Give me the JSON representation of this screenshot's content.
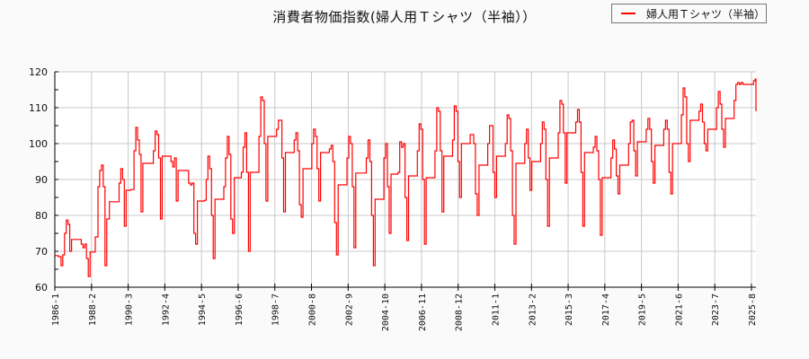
{
  "chart_data": {
    "type": "line",
    "title": "消費者物価指数(婦人用Ｔシャツ（半袖））",
    "xlabel": "",
    "ylabel": "",
    "ylim": [
      60,
      120
    ],
    "yticks": [
      60,
      70,
      80,
      90,
      100,
      110,
      120
    ],
    "xticks": [
      "1986-1",
      "1988-2",
      "1990-3",
      "1992-4",
      "1994-5",
      "1996-6",
      "1998-7",
      "2000-8",
      "2002-9",
      "2004-10",
      "2006-11",
      "2008-12",
      "2011-1",
      "2013-2",
      "2015-3",
      "2017-4",
      "2019-5",
      "2021-6",
      "2023-7",
      "2025-8"
    ],
    "grid": true,
    "legend_position": "top-right",
    "series": [
      {
        "name": "婦人用Ｔシャツ（半袖）",
        "color": "#ff0000",
        "points": [
          [
            1986.0,
            68.8
          ],
          [
            1986.2,
            68.5
          ],
          [
            1986.35,
            66
          ],
          [
            1986.45,
            69
          ],
          [
            1986.55,
            75
          ],
          [
            1986.65,
            78.7
          ],
          [
            1986.75,
            77.5
          ],
          [
            1986.85,
            70
          ],
          [
            1986.95,
            73.3
          ],
          [
            1987.2,
            73.3
          ],
          [
            1987.4,
            73.3
          ],
          [
            1987.5,
            72
          ],
          [
            1987.6,
            71
          ],
          [
            1987.7,
            72
          ],
          [
            1987.8,
            68
          ],
          [
            1987.9,
            63
          ],
          [
            1988.0,
            69.8
          ],
          [
            1988.1,
            69.8
          ],
          [
            1988.2,
            69.8
          ],
          [
            1988.3,
            74
          ],
          [
            1988.45,
            88
          ],
          [
            1988.55,
            92.5
          ],
          [
            1988.65,
            94
          ],
          [
            1988.75,
            88
          ],
          [
            1988.85,
            66
          ],
          [
            1988.95,
            79
          ],
          [
            1989.1,
            83.8
          ],
          [
            1989.5,
            83.8
          ],
          [
            1989.65,
            89
          ],
          [
            1989.75,
            93
          ],
          [
            1989.85,
            90
          ],
          [
            1989.95,
            77
          ],
          [
            1990.05,
            87
          ],
          [
            1990.3,
            87.2
          ],
          [
            1990.4,
            87.2
          ],
          [
            1990.5,
            98
          ],
          [
            1990.6,
            104.5
          ],
          [
            1990.7,
            101
          ],
          [
            1990.8,
            97
          ],
          [
            1990.9,
            81
          ],
          [
            1991.0,
            94.5
          ],
          [
            1991.3,
            94.5
          ],
          [
            1991.5,
            94.5
          ],
          [
            1991.6,
            98
          ],
          [
            1991.7,
            103.5
          ],
          [
            1991.8,
            102.5
          ],
          [
            1991.9,
            96
          ],
          [
            1992.0,
            79
          ],
          [
            1992.1,
            96.5
          ],
          [
            1992.4,
            96.5
          ],
          [
            1992.5,
            96.5
          ],
          [
            1992.6,
            95
          ],
          [
            1992.7,
            93.5
          ],
          [
            1992.8,
            96
          ],
          [
            1992.9,
            84
          ],
          [
            1993.0,
            92.5
          ],
          [
            1993.3,
            92.5
          ],
          [
            1993.5,
            92.5
          ],
          [
            1993.6,
            89
          ],
          [
            1993.7,
            88.5
          ],
          [
            1993.8,
            89
          ],
          [
            1993.9,
            75
          ],
          [
            1994.0,
            72
          ],
          [
            1994.1,
            84
          ],
          [
            1994.4,
            84
          ],
          [
            1994.5,
            84.2
          ],
          [
            1994.6,
            90
          ],
          [
            1994.7,
            96.5
          ],
          [
            1994.8,
            93
          ],
          [
            1994.9,
            80
          ],
          [
            1995.0,
            68
          ],
          [
            1995.1,
            84.5
          ],
          [
            1995.5,
            84.5
          ],
          [
            1995.6,
            88
          ],
          [
            1995.7,
            96
          ],
          [
            1995.8,
            102
          ],
          [
            1995.9,
            97
          ],
          [
            1996.0,
            79
          ],
          [
            1996.1,
            75
          ],
          [
            1996.2,
            90.5
          ],
          [
            1996.5,
            90.5
          ],
          [
            1996.6,
            92
          ],
          [
            1996.7,
            99
          ],
          [
            1996.8,
            103
          ],
          [
            1996.9,
            92
          ],
          [
            1997.0,
            70
          ],
          [
            1997.1,
            92
          ],
          [
            1997.5,
            92
          ],
          [
            1997.6,
            102
          ],
          [
            1997.7,
            113
          ],
          [
            1997.8,
            112
          ],
          [
            1997.9,
            100
          ],
          [
            1998.0,
            84
          ],
          [
            1998.1,
            102
          ],
          [
            1998.5,
            102
          ],
          [
            1998.6,
            104
          ],
          [
            1998.7,
            106.5
          ],
          [
            1998.8,
            106.5
          ],
          [
            1998.9,
            96
          ],
          [
            1999.0,
            81
          ],
          [
            1999.1,
            97.5
          ],
          [
            1999.5,
            97.5
          ],
          [
            1999.6,
            101
          ],
          [
            1999.7,
            103
          ],
          [
            1999.8,
            98
          ],
          [
            1999.9,
            83
          ],
          [
            2000.0,
            79.5
          ],
          [
            2000.1,
            93
          ],
          [
            2000.5,
            93
          ],
          [
            2000.6,
            100
          ],
          [
            2000.7,
            104
          ],
          [
            2000.8,
            102
          ],
          [
            2000.9,
            93
          ],
          [
            2001.0,
            84
          ],
          [
            2001.1,
            97.5
          ],
          [
            2001.5,
            97.5
          ],
          [
            2001.6,
            98.5
          ],
          [
            2001.7,
            99.5
          ],
          [
            2001.8,
            95
          ],
          [
            2001.9,
            78
          ],
          [
            2002.0,
            69
          ],
          [
            2002.1,
            88.5
          ],
          [
            2002.5,
            88.5
          ],
          [
            2002.6,
            96
          ],
          [
            2002.7,
            102
          ],
          [
            2002.8,
            100
          ],
          [
            2002.9,
            88
          ],
          [
            2003.0,
            71
          ],
          [
            2003.1,
            91.8
          ],
          [
            2003.6,
            91.8
          ],
          [
            2003.7,
            96
          ],
          [
            2003.8,
            101
          ],
          [
            2003.9,
            95
          ],
          [
            2004.0,
            80
          ],
          [
            2004.1,
            66
          ],
          [
            2004.2,
            84.5
          ],
          [
            2004.6,
            84.5
          ],
          [
            2004.7,
            96
          ],
          [
            2004.8,
            100
          ],
          [
            2004.9,
            88
          ],
          [
            2005.0,
            75
          ],
          [
            2005.1,
            91.5
          ],
          [
            2005.4,
            91.5
          ],
          [
            2005.5,
            92
          ],
          [
            2005.6,
            100.5
          ],
          [
            2005.7,
            99
          ],
          [
            2005.8,
            100
          ],
          [
            2005.9,
            85
          ],
          [
            2006.0,
            73
          ],
          [
            2006.1,
            91
          ],
          [
            2006.5,
            91
          ],
          [
            2006.6,
            98
          ],
          [
            2006.7,
            105.5
          ],
          [
            2006.8,
            104
          ],
          [
            2006.9,
            90
          ],
          [
            2007.0,
            72
          ],
          [
            2007.1,
            90.5
          ],
          [
            2007.5,
            90.5
          ],
          [
            2007.6,
            98
          ],
          [
            2007.7,
            110
          ],
          [
            2007.8,
            109
          ],
          [
            2007.9,
            98
          ],
          [
            2008.0,
            81
          ],
          [
            2008.1,
            96.5
          ],
          [
            2008.5,
            96.5
          ],
          [
            2008.6,
            101
          ],
          [
            2008.7,
            110.5
          ],
          [
            2008.8,
            109
          ],
          [
            2008.9,
            95
          ],
          [
            2009.0,
            85
          ],
          [
            2009.1,
            100
          ],
          [
            2009.5,
            100
          ],
          [
            2009.6,
            102.5
          ],
          [
            2009.7,
            102.5
          ],
          [
            2009.8,
            100
          ],
          [
            2009.9,
            86
          ],
          [
            2010.0,
            80
          ],
          [
            2010.1,
            94
          ],
          [
            2010.5,
            94
          ],
          [
            2010.6,
            100
          ],
          [
            2010.7,
            105
          ],
          [
            2010.8,
            105
          ],
          [
            2010.9,
            92
          ],
          [
            2011.0,
            85
          ],
          [
            2011.1,
            96.5
          ],
          [
            2011.5,
            96.5
          ],
          [
            2011.6,
            100
          ],
          [
            2011.7,
            108
          ],
          [
            2011.8,
            107
          ],
          [
            2011.9,
            98
          ],
          [
            2012.0,
            80
          ],
          [
            2012.1,
            72
          ],
          [
            2012.2,
            94.5
          ],
          [
            2012.6,
            94.5
          ],
          [
            2012.7,
            100
          ],
          [
            2012.8,
            104
          ],
          [
            2012.9,
            96
          ],
          [
            2013.0,
            87
          ],
          [
            2013.1,
            95
          ],
          [
            2013.5,
            95
          ],
          [
            2013.6,
            100
          ],
          [
            2013.7,
            106
          ],
          [
            2013.8,
            104
          ],
          [
            2013.9,
            90
          ],
          [
            2014.0,
            77
          ],
          [
            2014.1,
            96
          ],
          [
            2014.5,
            96
          ],
          [
            2014.6,
            103
          ],
          [
            2014.7,
            112
          ],
          [
            2014.8,
            111
          ],
          [
            2014.9,
            103
          ],
          [
            2015.0,
            89
          ],
          [
            2015.1,
            103
          ],
          [
            2015.5,
            103
          ],
          [
            2015.6,
            106
          ],
          [
            2015.7,
            109.5
          ],
          [
            2015.8,
            106
          ],
          [
            2015.9,
            92
          ],
          [
            2016.0,
            77
          ],
          [
            2016.1,
            97.5
          ],
          [
            2016.5,
            97.5
          ],
          [
            2016.6,
            99
          ],
          [
            2016.7,
            102
          ],
          [
            2016.8,
            98
          ],
          [
            2016.9,
            90
          ],
          [
            2017.0,
            74.5
          ],
          [
            2017.1,
            90.5
          ],
          [
            2017.5,
            90.5
          ],
          [
            2017.6,
            96
          ],
          [
            2017.7,
            101
          ],
          [
            2017.8,
            98.5
          ],
          [
            2017.9,
            91
          ],
          [
            2018.0,
            86
          ],
          [
            2018.1,
            94
          ],
          [
            2018.5,
            94
          ],
          [
            2018.6,
            100
          ],
          [
            2018.7,
            106
          ],
          [
            2018.8,
            106.5
          ],
          [
            2018.9,
            98
          ],
          [
            2019.0,
            91
          ],
          [
            2019.1,
            100.5
          ],
          [
            2019.5,
            100.5
          ],
          [
            2019.6,
            104
          ],
          [
            2019.7,
            107
          ],
          [
            2019.8,
            104
          ],
          [
            2019.9,
            95
          ],
          [
            2020.0,
            89
          ],
          [
            2020.1,
            99.5
          ],
          [
            2020.5,
            99.5
          ],
          [
            2020.6,
            104
          ],
          [
            2020.7,
            106.5
          ],
          [
            2020.8,
            104
          ],
          [
            2020.9,
            92
          ],
          [
            2021.0,
            86
          ],
          [
            2021.1,
            100
          ],
          [
            2021.5,
            100
          ],
          [
            2021.6,
            108
          ],
          [
            2021.7,
            115.5
          ],
          [
            2021.8,
            113
          ],
          [
            2021.9,
            100
          ],
          [
            2022.0,
            95
          ],
          [
            2022.1,
            106.5
          ],
          [
            2022.5,
            106.5
          ],
          [
            2022.6,
            109
          ],
          [
            2022.7,
            111
          ],
          [
            2022.8,
            106
          ],
          [
            2022.9,
            100
          ],
          [
            2023.0,
            98
          ],
          [
            2023.1,
            104
          ],
          [
            2023.5,
            104
          ],
          [
            2023.6,
            110
          ],
          [
            2023.7,
            114.5
          ],
          [
            2023.8,
            111
          ],
          [
            2023.9,
            104
          ],
          [
            2024.0,
            99
          ],
          [
            2024.1,
            107
          ],
          [
            2024.5,
            107
          ],
          [
            2024.6,
            112
          ],
          [
            2024.7,
            116.5
          ],
          [
            2024.8,
            117
          ],
          [
            2024.9,
            116.5
          ],
          [
            2025.0,
            117
          ],
          [
            2025.1,
            116.5
          ],
          [
            2025.6,
            116.5
          ],
          [
            2025.7,
            117.5
          ],
          [
            2025.8,
            118
          ],
          [
            2025.85,
            117.5
          ],
          [
            2025.95,
            112
          ],
          [
            2026.05,
            109
          ],
          [
            2026.15,
            115
          ],
          [
            2026.45,
            115
          ]
        ]
      }
    ]
  },
  "legend": {
    "label": "婦人用Ｔシャツ（半袖）",
    "color": "#ff0000"
  },
  "colors": {
    "background": "#fafafa",
    "plot_background": "#ffffff",
    "grid": "#c8c8c8",
    "axis": "#000000",
    "line": "#ff0000"
  }
}
